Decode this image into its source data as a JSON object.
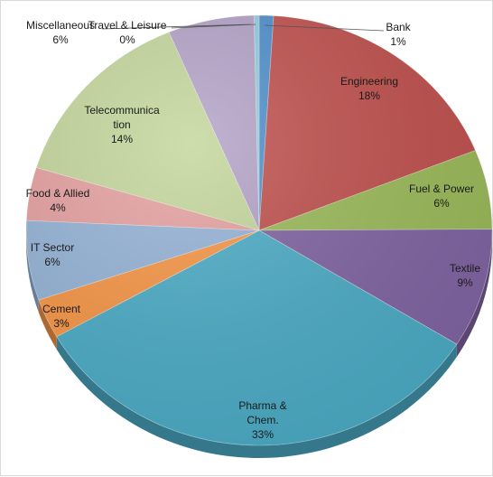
{
  "chart_data": {
    "type": "pie",
    "style": "3d",
    "title": "",
    "slices": [
      {
        "label": "Bank",
        "value": 1,
        "percent_label": "1%",
        "color": "#4f8fcc"
      },
      {
        "label": "Engineering",
        "value": 18,
        "percent_label": "18%",
        "color": "#c0504d"
      },
      {
        "label": "Fuel & Power",
        "value": 6,
        "percent_label": "6%",
        "color": "#9bbb59"
      },
      {
        "label": "Textile",
        "value": 9,
        "percent_label": "9%",
        "color": "#8064a2"
      },
      {
        "label": "Pharma & Chem.",
        "value": 33,
        "percent_label": "33%",
        "color": "#4bacc6"
      },
      {
        "label": "Cement",
        "value": 3,
        "percent_label": "3%",
        "color": "#f79646"
      },
      {
        "label": "IT Sector",
        "value": 6,
        "percent_label": "6%",
        "color": "#95b3d7"
      },
      {
        "label": "Food & Allied",
        "value": 4,
        "percent_label": "4%",
        "color": "#e6a0a0"
      },
      {
        "label": "Telecommunication",
        "value": 14,
        "percent_label": "14%",
        "color": "#c3d69b"
      },
      {
        "label": "Miscellaneous",
        "value": 6,
        "percent_label": "6%",
        "color": "#b3a2c7"
      },
      {
        "label": "Travel & Leisure",
        "value": 0,
        "percent_label": "0%",
        "color": "#93cddd"
      }
    ]
  }
}
